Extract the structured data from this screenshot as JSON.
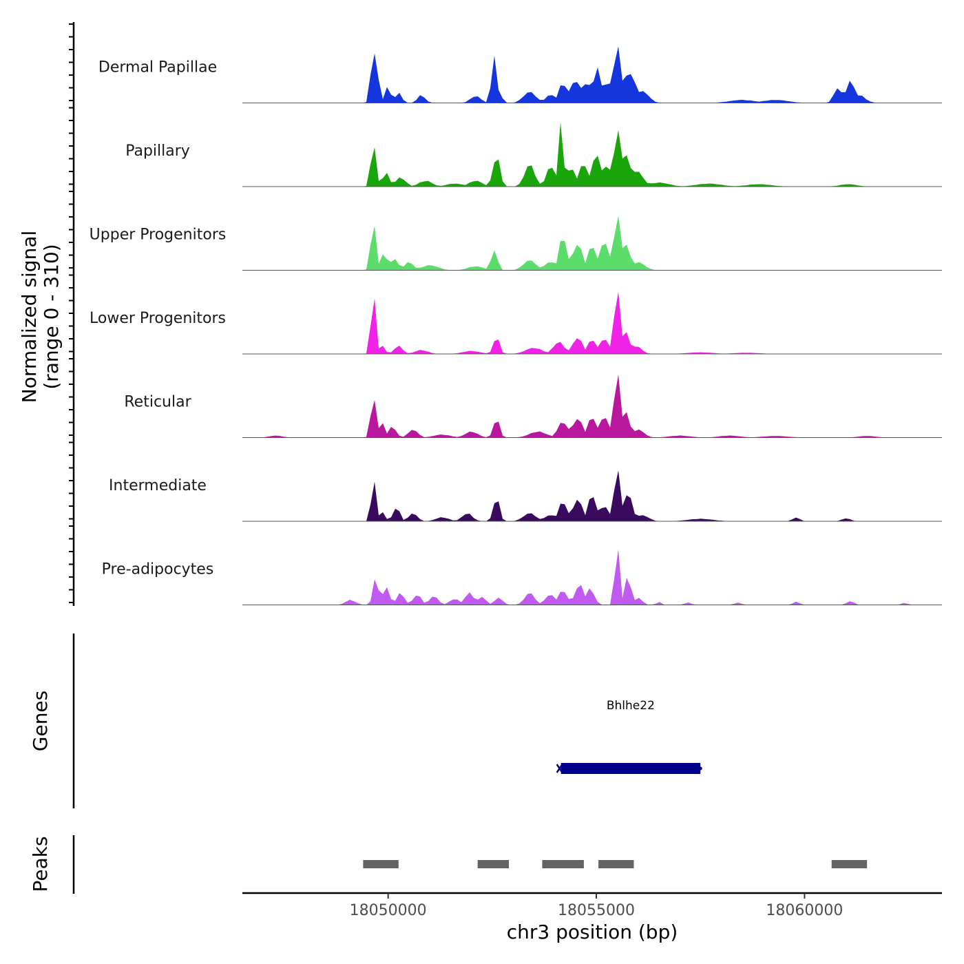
{
  "chart_data": {
    "type": "area",
    "title": "",
    "ylabel": "Normalized signal",
    "ylabel_range": "(range 0 - 310)",
    "ylim": [
      0,
      310
    ],
    "xlabel": "chr3 position (bp)",
    "xlim": [
      18046500,
      18063300
    ],
    "x_ticks": [
      18050000,
      18055000,
      18060000
    ],
    "x_tick_labels": [
      "18050000",
      "18055000",
      "18060000"
    ],
    "series": [
      {
        "name": "Dermal Papillae",
        "color": "#1536DC",
        "peaks": [
          [
            18049650,
            290,
            60
          ],
          [
            18049780,
            110,
            50
          ],
          [
            18049990,
            80,
            70
          ],
          [
            18050250,
            50,
            80
          ],
          [
            18050800,
            40,
            90
          ],
          [
            18052100,
            35,
            120
          ],
          [
            18052550,
            260,
            60
          ],
          [
            18052650,
            50,
            80
          ],
          [
            18053400,
            55,
            150
          ],
          [
            18053900,
            40,
            120
          ],
          [
            18054200,
            100,
            100
          ],
          [
            18054500,
            110,
            140
          ],
          [
            18054750,
            105,
            130
          ],
          [
            18055000,
            205,
            60
          ],
          [
            18055250,
            100,
            200
          ],
          [
            18055500,
            295,
            80
          ],
          [
            18055700,
            150,
            90
          ],
          [
            18055850,
            140,
            110
          ],
          [
            18056100,
            60,
            150
          ],
          [
            18058500,
            15,
            300
          ],
          [
            18059300,
            15,
            300
          ],
          [
            18060800,
            80,
            90
          ],
          [
            18061100,
            110,
            100
          ],
          [
            18061300,
            40,
            150
          ]
        ]
      },
      {
        "name": "Papillary",
        "color": "#1AA50A",
        "peaks": [
          [
            18049650,
            230,
            60
          ],
          [
            18049950,
            70,
            80
          ],
          [
            18050300,
            45,
            120
          ],
          [
            18050900,
            30,
            150
          ],
          [
            18051600,
            15,
            200
          ],
          [
            18052100,
            30,
            150
          ],
          [
            18052600,
            160,
            80
          ],
          [
            18053400,
            110,
            120
          ],
          [
            18053900,
            100,
            100
          ],
          [
            18054150,
            310,
            60
          ],
          [
            18054400,
            90,
            110
          ],
          [
            18054700,
            120,
            100
          ],
          [
            18055000,
            160,
            110
          ],
          [
            18055250,
            110,
            100
          ],
          [
            18055500,
            300,
            70
          ],
          [
            18055700,
            170,
            110
          ],
          [
            18055950,
            80,
            160
          ],
          [
            18056500,
            20,
            250
          ],
          [
            18057700,
            15,
            300
          ],
          [
            18058900,
            12,
            300
          ],
          [
            18061050,
            12,
            200
          ]
        ]
      },
      {
        "name": "Upper Progenitors",
        "color": "#5CDC6A",
        "peaks": [
          [
            18049650,
            260,
            60
          ],
          [
            18049900,
            90,
            70
          ],
          [
            18050150,
            60,
            90
          ],
          [
            18050500,
            40,
            110
          ],
          [
            18051000,
            25,
            200
          ],
          [
            18052100,
            20,
            180
          ],
          [
            18052550,
            110,
            70
          ],
          [
            18053400,
            50,
            150
          ],
          [
            18053900,
            40,
            150
          ],
          [
            18054200,
            175,
            90
          ],
          [
            18054550,
            130,
            120
          ],
          [
            18054900,
            120,
            110
          ],
          [
            18055200,
            150,
            100
          ],
          [
            18055500,
            290,
            70
          ],
          [
            18055700,
            140,
            100
          ],
          [
            18056000,
            40,
            160
          ]
        ]
      },
      {
        "name": "Lower Progenitors",
        "color": "#F022E6",
        "peaks": [
          [
            18049650,
            330,
            55
          ],
          [
            18049850,
            45,
            70
          ],
          [
            18050250,
            40,
            100
          ],
          [
            18050800,
            20,
            150
          ],
          [
            18052000,
            15,
            200
          ],
          [
            18052600,
            90,
            70
          ],
          [
            18053500,
            30,
            200
          ],
          [
            18054100,
            60,
            130
          ],
          [
            18054550,
            80,
            120
          ],
          [
            18054900,
            70,
            110
          ],
          [
            18055200,
            80,
            100
          ],
          [
            18055500,
            330,
            70
          ],
          [
            18055700,
            120,
            90
          ],
          [
            18055950,
            40,
            130
          ],
          [
            18057500,
            8,
            300
          ],
          [
            18058600,
            6,
            300
          ]
        ]
      },
      {
        "name": "Reticular",
        "color": "#B8179E",
        "peaks": [
          [
            18047300,
            10,
            150
          ],
          [
            18049650,
            220,
            60
          ],
          [
            18049850,
            80,
            70
          ],
          [
            18050100,
            55,
            90
          ],
          [
            18050600,
            40,
            110
          ],
          [
            18051300,
            15,
            200
          ],
          [
            18052000,
            30,
            150
          ],
          [
            18052600,
            100,
            70
          ],
          [
            18053600,
            30,
            200
          ],
          [
            18054200,
            80,
            120
          ],
          [
            18054550,
            95,
            120
          ],
          [
            18054900,
            100,
            110
          ],
          [
            18055200,
            110,
            100
          ],
          [
            18055500,
            335,
            70
          ],
          [
            18055700,
            140,
            90
          ],
          [
            18056000,
            40,
            140
          ],
          [
            18057000,
            10,
            250
          ],
          [
            18058200,
            10,
            250
          ],
          [
            18059300,
            8,
            300
          ],
          [
            18061500,
            8,
            200
          ]
        ]
      },
      {
        "name": "Intermediate",
        "color": "#3A0A5E",
        "peaks": [
          [
            18049650,
            240,
            50
          ],
          [
            18049850,
            50,
            70
          ],
          [
            18050200,
            70,
            80
          ],
          [
            18050600,
            40,
            100
          ],
          [
            18051300,
            20,
            150
          ],
          [
            18051900,
            40,
            120
          ],
          [
            18052600,
            125,
            70
          ],
          [
            18053400,
            40,
            150
          ],
          [
            18053900,
            30,
            150
          ],
          [
            18054200,
            100,
            100
          ],
          [
            18054550,
            110,
            110
          ],
          [
            18054900,
            130,
            100
          ],
          [
            18055200,
            80,
            100
          ],
          [
            18055500,
            270,
            70
          ],
          [
            18055750,
            140,
            110
          ],
          [
            18056100,
            30,
            150
          ],
          [
            18057500,
            12,
            300
          ],
          [
            18059800,
            20,
            80
          ],
          [
            18061000,
            15,
            100
          ]
        ]
      },
      {
        "name": "Pre-adipocytes",
        "color": "#C15AF0",
        "peaks": [
          [
            18049100,
            25,
            120
          ],
          [
            18049700,
            150,
            60
          ],
          [
            18049950,
            90,
            80
          ],
          [
            18050300,
            60,
            90
          ],
          [
            18050700,
            50,
            100
          ],
          [
            18051100,
            45,
            100
          ],
          [
            18051600,
            30,
            120
          ],
          [
            18051950,
            60,
            110
          ],
          [
            18052250,
            40,
            100
          ],
          [
            18052650,
            35,
            100
          ],
          [
            18053400,
            60,
            120
          ],
          [
            18053900,
            50,
            130
          ],
          [
            18054200,
            75,
            100
          ],
          [
            18054600,
            100,
            110
          ],
          [
            18054850,
            80,
            100
          ],
          [
            18055500,
            310,
            55
          ],
          [
            18055750,
            150,
            70
          ],
          [
            18056000,
            35,
            100
          ],
          [
            18056500,
            15,
            60
          ],
          [
            18057200,
            12,
            80
          ],
          [
            18058400,
            12,
            80
          ],
          [
            18059800,
            18,
            70
          ],
          [
            18061100,
            18,
            90
          ],
          [
            18062400,
            10,
            80
          ]
        ]
      }
    ],
    "gene_label": "Bhlhe22",
    "gene": {
      "name": "Bhlhe22",
      "start": 18054150,
      "end": 18057500,
      "strand": "+",
      "color": "#00008B"
    },
    "peaks_track": [
      [
        18049400,
        18050250
      ],
      [
        18052150,
        18052900
      ],
      [
        18053700,
        18054700
      ],
      [
        18055050,
        18055900
      ],
      [
        18060650,
        18061500
      ]
    ],
    "peaks_color": "#636363",
    "track_labels": {
      "genes": "Genes",
      "peaks": "Peaks"
    }
  }
}
